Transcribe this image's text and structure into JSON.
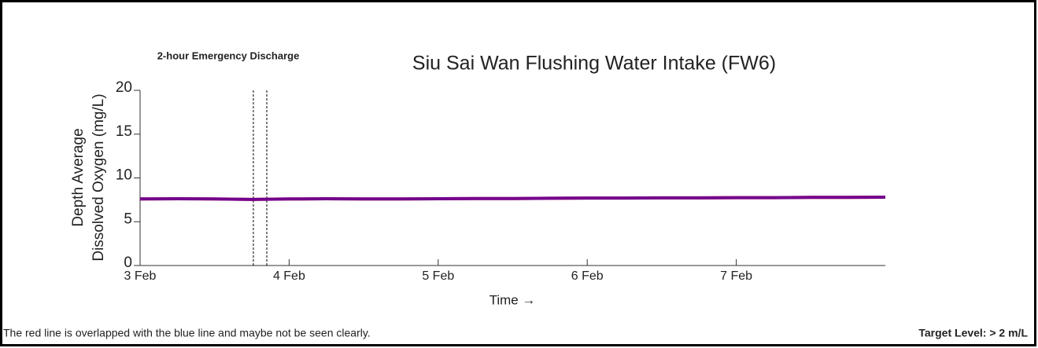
{
  "chart_data": {
    "type": "line",
    "title": "Siu Sai Wan Flushing Water Intake (FW6)",
    "annotation": "2-hour Emergency Discharge",
    "discharge_window": [
      3.76,
      3.85
    ],
    "xlabel": "Time →",
    "ylabel": [
      "Depth Average",
      "Dissolved Oxygen (mg/L)"
    ],
    "x": [
      3,
      3.25,
      3.5,
      3.75,
      4,
      4.25,
      4.5,
      4.75,
      5,
      5.25,
      5.5,
      5.75,
      6,
      6.25,
      6.5,
      6.75,
      7,
      7.25,
      7.5,
      7.75,
      8
    ],
    "series": [
      {
        "name": "Red line",
        "color": "#ff0000",
        "values": [
          7.6,
          7.62,
          7.6,
          7.55,
          7.6,
          7.62,
          7.6,
          7.6,
          7.62,
          7.65,
          7.65,
          7.68,
          7.7,
          7.7,
          7.72,
          7.72,
          7.75,
          7.75,
          7.78,
          7.78,
          7.8
        ]
      },
      {
        "name": "Blue line",
        "color": "#0000ff",
        "values": [
          7.6,
          7.62,
          7.6,
          7.55,
          7.6,
          7.62,
          7.6,
          7.6,
          7.62,
          7.65,
          7.65,
          7.68,
          7.7,
          7.7,
          7.72,
          7.72,
          7.75,
          7.75,
          7.78,
          7.78,
          7.8
        ]
      }
    ],
    "xlim": [
      3,
      8
    ],
    "xticks": [
      {
        "value": 3,
        "label": "3 Feb"
      },
      {
        "value": 4,
        "label": "4 Feb"
      },
      {
        "value": 5,
        "label": "5 Feb"
      },
      {
        "value": 6,
        "label": "6 Feb"
      },
      {
        "value": 7,
        "label": "7 Feb"
      }
    ],
    "ylim": [
      0,
      20
    ],
    "yticks": [
      0,
      5,
      10,
      15,
      20
    ],
    "footnote": "The red line is overlapped with the blue line and maybe not be seen clearly.",
    "target": "Target Level: > 2 m/L"
  }
}
